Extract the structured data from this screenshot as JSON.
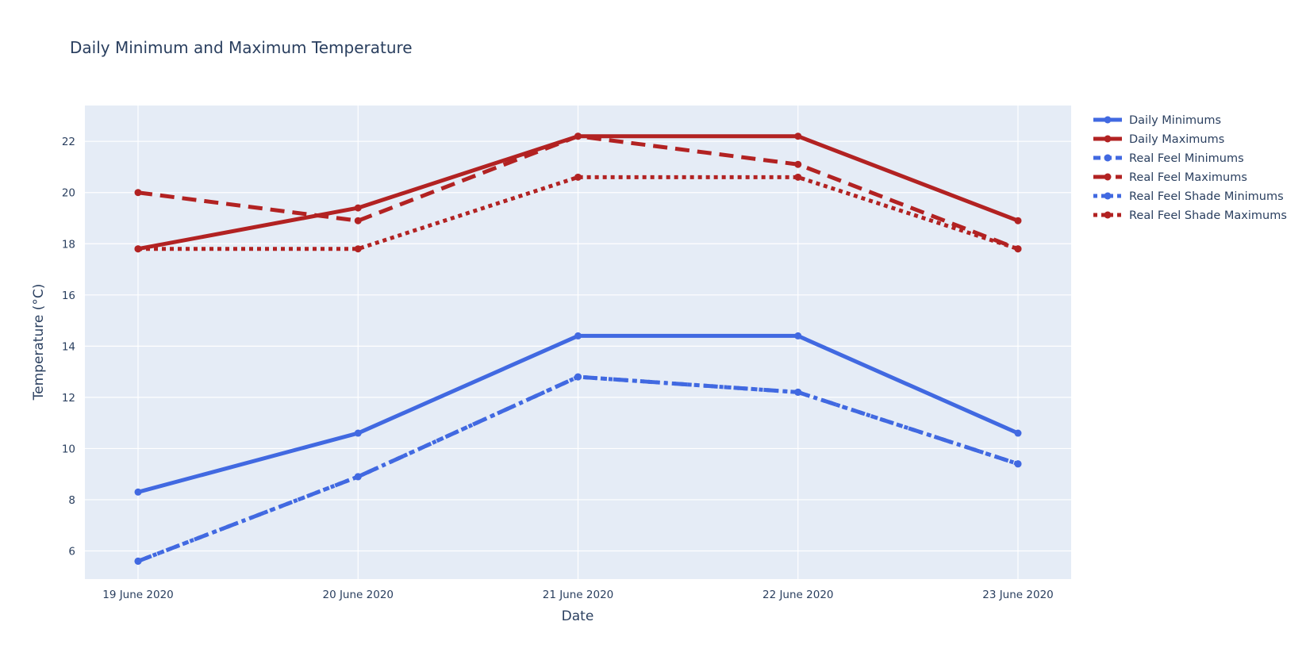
{
  "chart_data": {
    "type": "line",
    "title": "Daily Minimum and Maximum Temperature",
    "xlabel": "Date",
    "ylabel": "Temperature (°C)",
    "categories": [
      "19 June 2020",
      "20 June 2020",
      "21 June 2020",
      "22 June 2020",
      "23 June 2020"
    ],
    "ylim": [
      4.9,
      23.4
    ],
    "yticks": [
      6,
      8,
      10,
      12,
      14,
      16,
      18,
      20,
      22
    ],
    "grid": true,
    "legend_position": "top-right, outside plot",
    "plot_background": "#e5ecf6",
    "series": [
      {
        "name": "Daily Minimums",
        "values": [
          8.3,
          10.6,
          14.4,
          14.4,
          10.6
        ],
        "color": "#4169e1",
        "dash": "solid"
      },
      {
        "name": "Daily Maximums",
        "values": [
          17.8,
          19.4,
          22.2,
          22.2,
          18.9
        ],
        "color": "#b22222",
        "dash": "solid"
      },
      {
        "name": "Real Feel Minimums",
        "values": [
          5.6,
          8.9,
          12.8,
          12.2,
          9.4
        ],
        "color": "#4169e1",
        "dash": "dash"
      },
      {
        "name": "Real Feel Maximums",
        "values": [
          20.0,
          18.9,
          22.2,
          21.1,
          17.8
        ],
        "color": "#b22222",
        "dash": "dash"
      },
      {
        "name": "Real Feel Shade Minimums",
        "values": [
          5.6,
          8.9,
          12.8,
          12.2,
          9.4
        ],
        "color": "#4169e1",
        "dash": "dot"
      },
      {
        "name": "Real Feel Shade Maximums",
        "values": [
          17.8,
          17.8,
          20.6,
          20.6,
          17.8
        ],
        "color": "#b22222",
        "dash": "dot"
      }
    ]
  }
}
